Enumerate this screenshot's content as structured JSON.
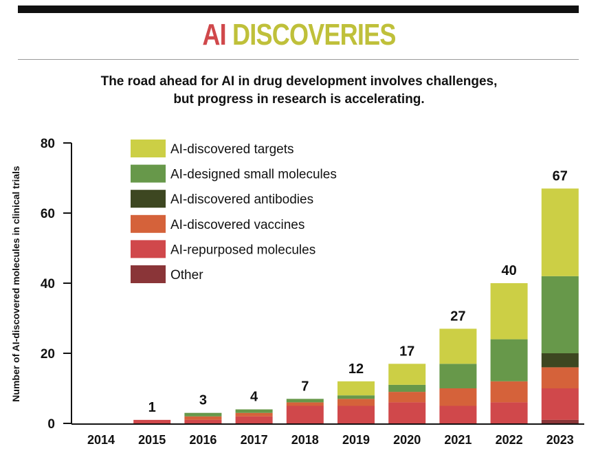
{
  "title": {
    "part1": "AI",
    "part2": "DISCOVERIES",
    "color1": "#d0484b",
    "color2": "#bfc03a"
  },
  "subtitle": [
    "The road ahead for AI in drug development involves challenges,",
    "but progress in research is accelerating."
  ],
  "chart_data": {
    "type": "bar",
    "stacked": true,
    "ylabel": "Number of AI-discovered molecules in clinical trials",
    "ylim": [
      0,
      80
    ],
    "yticks": [
      0,
      20,
      40,
      60,
      80
    ],
    "legend_position": "top-left",
    "categories": [
      "2014",
      "2015",
      "2016",
      "2017",
      "2018",
      "2019",
      "2020",
      "2021",
      "2022",
      "2023"
    ],
    "totals": [
      "",
      "1",
      "3",
      "4",
      "7",
      "12",
      "17",
      "27",
      "40",
      "67"
    ],
    "series": [
      {
        "name": "Other",
        "color": "#8a3538",
        "values": [
          0,
          0,
          0,
          0,
          0,
          0,
          0,
          0,
          0,
          1
        ]
      },
      {
        "name": "AI-repurposed molecules",
        "color": "#d0484b",
        "values": [
          0,
          1,
          1,
          2,
          5,
          5,
          6,
          5,
          6,
          9
        ]
      },
      {
        "name": "AI-discovered vaccines",
        "color": "#d5623a",
        "values": [
          0,
          0,
          1,
          1,
          1,
          2,
          3,
          5,
          6,
          6
        ]
      },
      {
        "name": "AI-discovered antibodies",
        "color": "#3d4721",
        "values": [
          0,
          0,
          0,
          0,
          0,
          0,
          0,
          0,
          0,
          4
        ]
      },
      {
        "name": "AI-designed small molecules",
        "color": "#67984a",
        "values": [
          0,
          0,
          1,
          1,
          1,
          1,
          2,
          7,
          12,
          22
        ]
      },
      {
        "name": "AI-discovered targets",
        "color": "#cccf45",
        "values": [
          0,
          0,
          0,
          0,
          0,
          4,
          6,
          10,
          16,
          25
        ]
      }
    ],
    "legend_order": [
      "AI-discovered targets",
      "AI-designed small molecules",
      "AI-discovered antibodies",
      "AI-discovered vaccines",
      "AI-repurposed molecules",
      "Other"
    ]
  }
}
